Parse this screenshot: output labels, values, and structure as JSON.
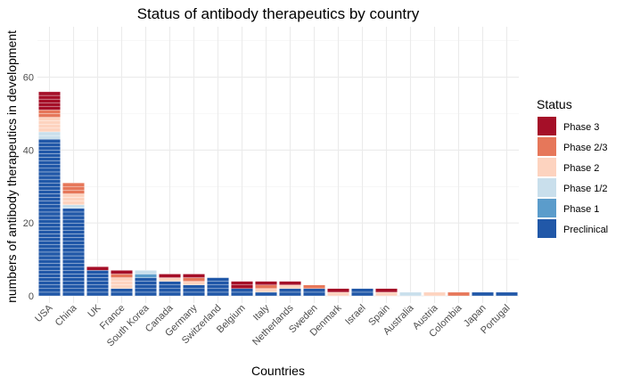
{
  "chart_data": {
    "type": "bar",
    "stacked": true,
    "title": "Status of antibody therapeutics by country",
    "xlabel": "Countries",
    "ylabel": "numbers of antibody therapeutics in development",
    "ylim": [
      0,
      72
    ],
    "yticks": [
      0,
      20,
      40,
      60
    ],
    "grid": true,
    "legend_position": "right",
    "legend_title": "Status",
    "categories": [
      "USA",
      "China",
      "UK",
      "France",
      "South Korea",
      "Canada",
      "Germany",
      "Switzerland",
      "Belgium",
      "Italy",
      "Netherlands",
      "Sweden",
      "Denmark",
      "Israel",
      "Spain",
      "Australia",
      "Austria",
      "Colombia",
      "Japan",
      "Portugal"
    ],
    "series": [
      {
        "name": "Preclinical",
        "color": "#2158a8",
        "values": [
          43,
          24,
          7,
          2,
          5,
          4,
          3,
          5,
          2,
          1,
          2,
          2,
          0,
          2,
          0,
          0,
          0,
          0,
          1,
          1
        ]
      },
      {
        "name": "Phase 1",
        "color": "#5b9ccb",
        "values": [
          0,
          0,
          0,
          0,
          1,
          0,
          0,
          0,
          0,
          0,
          0,
          0,
          0,
          0,
          0,
          0,
          0,
          0,
          0,
          0
        ]
      },
      {
        "name": "Phase 1/2",
        "color": "#c9dfec",
        "values": [
          2,
          1,
          0,
          0,
          1,
          0,
          0,
          0,
          0,
          0,
          0,
          0,
          0,
          0,
          0,
          1,
          0,
          0,
          0,
          0
        ]
      },
      {
        "name": "Phase 2",
        "color": "#fdd3bf",
        "values": [
          4,
          3,
          0,
          3,
          0,
          1,
          1,
          0,
          0,
          1,
          1,
          0,
          1,
          0,
          1,
          0,
          1,
          0,
          0,
          0
        ]
      },
      {
        "name": "Phase 2/3",
        "color": "#e6775a",
        "values": [
          2,
          3,
          0,
          1,
          0,
          0,
          1,
          0,
          0,
          1,
          0,
          1,
          0,
          0,
          0,
          0,
          0,
          1,
          0,
          0
        ]
      },
      {
        "name": "Phase 3",
        "color": "#a50f28",
        "values": [
          5,
          0,
          1,
          1,
          0,
          1,
          1,
          0,
          2,
          1,
          1,
          0,
          1,
          0,
          1,
          0,
          0,
          0,
          0,
          0
        ]
      }
    ]
  }
}
